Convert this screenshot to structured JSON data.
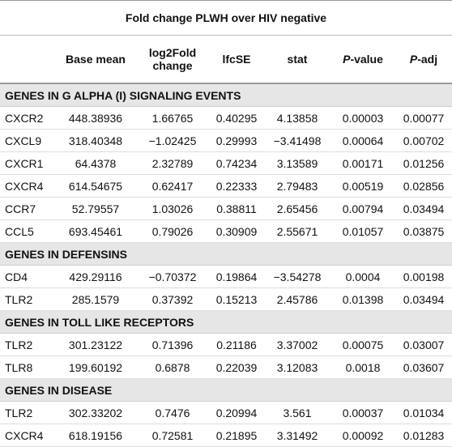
{
  "table": {
    "title": "Fold change PLWH over HIV negative",
    "columns": [
      "",
      "Base mean",
      [
        "log2Fold",
        "change"
      ],
      "lfcSE",
      "stat",
      [
        "P",
        "-value"
      ],
      [
        "P",
        "-adj"
      ]
    ],
    "sections": [
      {
        "label": "GENES IN G ALPHA (I) SIGNALING EVENTS",
        "rows": [
          [
            "CXCR2",
            "448.38936",
            "1.66765",
            "0.40295",
            "4.13858",
            "0.00003",
            "0.00077"
          ],
          [
            "CXCL9",
            "318.40348",
            "−1.02425",
            "0.29993",
            "−3.41498",
            "0.00064",
            "0.00702"
          ],
          [
            "CXCR1",
            "64.4378",
            "2.32789",
            "0.74234",
            "3.13589",
            "0.00171",
            "0.01256"
          ],
          [
            "CXCR4",
            "614.54675",
            "0.62417",
            "0.22333",
            "2.79483",
            "0.00519",
            "0.02856"
          ],
          [
            "CCR7",
            "52.79557",
            "1.03026",
            "0.38811",
            "2.65456",
            "0.00794",
            "0.03494"
          ],
          [
            "CCL5",
            "693.45461",
            "0.79026",
            "0.30909",
            "2.55671",
            "0.01057",
            "0.03875"
          ]
        ]
      },
      {
        "label": "GENES IN DEFENSINS",
        "rows": [
          [
            "CD4",
            "429.29116",
            "−0.70372",
            "0.19864",
            "−3.54278",
            "0.0004",
            "0.00198"
          ],
          [
            "TLR2",
            "285.1579",
            "0.37392",
            "0.15213",
            "2.45786",
            "0.01398",
            "0.03494"
          ]
        ]
      },
      {
        "label": "GENES IN TOLL LIKE RECEPTORS",
        "rows": [
          [
            "TLR2",
            "301.23122",
            "0.71396",
            "0.21186",
            "3.37002",
            "0.00075",
            "0.03007"
          ],
          [
            "TLR8",
            "199.60192",
            "0.6878",
            "0.22039",
            "3.12083",
            "0.0018",
            "0.03607"
          ]
        ]
      },
      {
        "label": "GENES IN DISEASE",
        "rows": [
          [
            "TLR2",
            "302.33202",
            "0.7476",
            "0.20994",
            "3.561",
            "0.00037",
            "0.01034"
          ],
          [
            "CXCR4",
            "618.19156",
            "0.72581",
            "0.21895",
            "3.31492",
            "0.00092",
            "0.01283"
          ]
        ]
      }
    ]
  }
}
